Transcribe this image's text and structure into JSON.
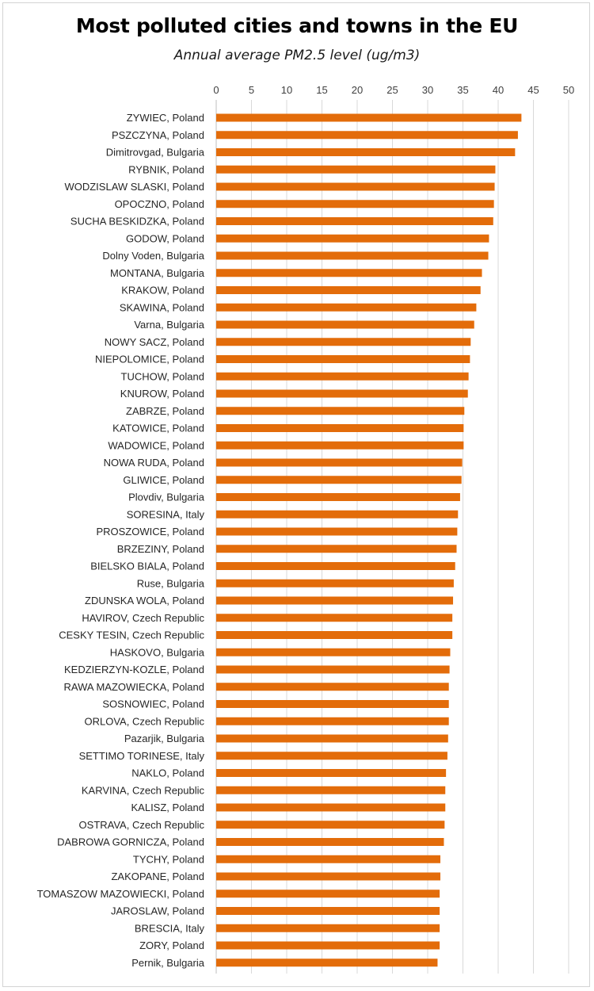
{
  "chart_data": {
    "type": "bar",
    "orientation": "horizontal",
    "title": "Most polluted cities and towns in the EU",
    "subtitle": "Annual average PM2.5 level (ug/m3)",
    "xlim": [
      0,
      50
    ],
    "xticks": [
      0,
      5,
      10,
      15,
      20,
      25,
      30,
      35,
      40,
      45,
      50
    ],
    "x_axis_position": "top",
    "grid": true,
    "bar_color": "#E36C0A",
    "categories": [
      "ZYWIEC, Poland",
      "PSZCZYNA, Poland",
      "Dimitrovgad, Bulgaria",
      "RYBNIK, Poland",
      "WODZISLAW SLASKI, Poland",
      "OPOCZNO, Poland",
      "SUCHA BESKIDZKA, Poland",
      "GODOW, Poland",
      "Dolny Voden, Bulgaria",
      "MONTANA, Bulgaria",
      "KRAKOW, Poland",
      "SKAWINA, Poland",
      "Varna, Bulgaria",
      "NOWY SACZ, Poland",
      "NIEPOLOMICE, Poland",
      "TUCHOW, Poland",
      "KNUROW, Poland",
      "ZABRZE, Poland",
      "KATOWICE, Poland",
      "WADOWICE, Poland",
      "NOWA RUDA, Poland",
      "GLIWICE, Poland",
      "Plovdiv, Bulgaria",
      "SORESINA, Italy",
      "PROSZOWICE, Poland",
      "BRZEZINY, Poland",
      "BIELSKO BIALA, Poland",
      "Ruse, Bulgaria",
      "ZDUNSKA WOLA, Poland",
      "HAVIROV, Czech Republic",
      "CESKY TESIN, Czech Republic",
      "HASKOVO, Bulgaria",
      "KEDZIERZYN-KOZLE, Poland",
      "RAWA MAZOWIECKA, Poland",
      "SOSNOWIEC, Poland",
      "ORLOVA, Czech Republic",
      "Pazarjik, Bulgaria",
      "SETTIMO TORINESE, Italy",
      "NAKLO, Poland",
      "KARVINA, Czech Republic",
      "KALISZ, Poland",
      "OSTRAVA, Czech Republic",
      "DABROWA GORNICZA, Poland",
      "TYCHY, Poland",
      "ZAKOPANE, Poland",
      "TOMASZOW MAZOWIECKI, Poland",
      "JAROSLAW, Poland",
      "BRESCIA, Italy",
      "ZORY, Poland",
      "Pernik, Bulgaria"
    ],
    "values": [
      43.3,
      42.8,
      42.4,
      39.6,
      39.5,
      39.4,
      39.3,
      38.7,
      38.6,
      37.7,
      37.5,
      36.9,
      36.6,
      36.1,
      36.0,
      35.8,
      35.7,
      35.2,
      35.1,
      35.1,
      34.9,
      34.8,
      34.6,
      34.3,
      34.2,
      34.1,
      33.9,
      33.7,
      33.6,
      33.5,
      33.5,
      33.2,
      33.1,
      33.0,
      33.0,
      33.0,
      32.9,
      32.8,
      32.6,
      32.5,
      32.5,
      32.4,
      32.3,
      31.8,
      31.8,
      31.7,
      31.7,
      31.7,
      31.7,
      31.4
    ]
  }
}
